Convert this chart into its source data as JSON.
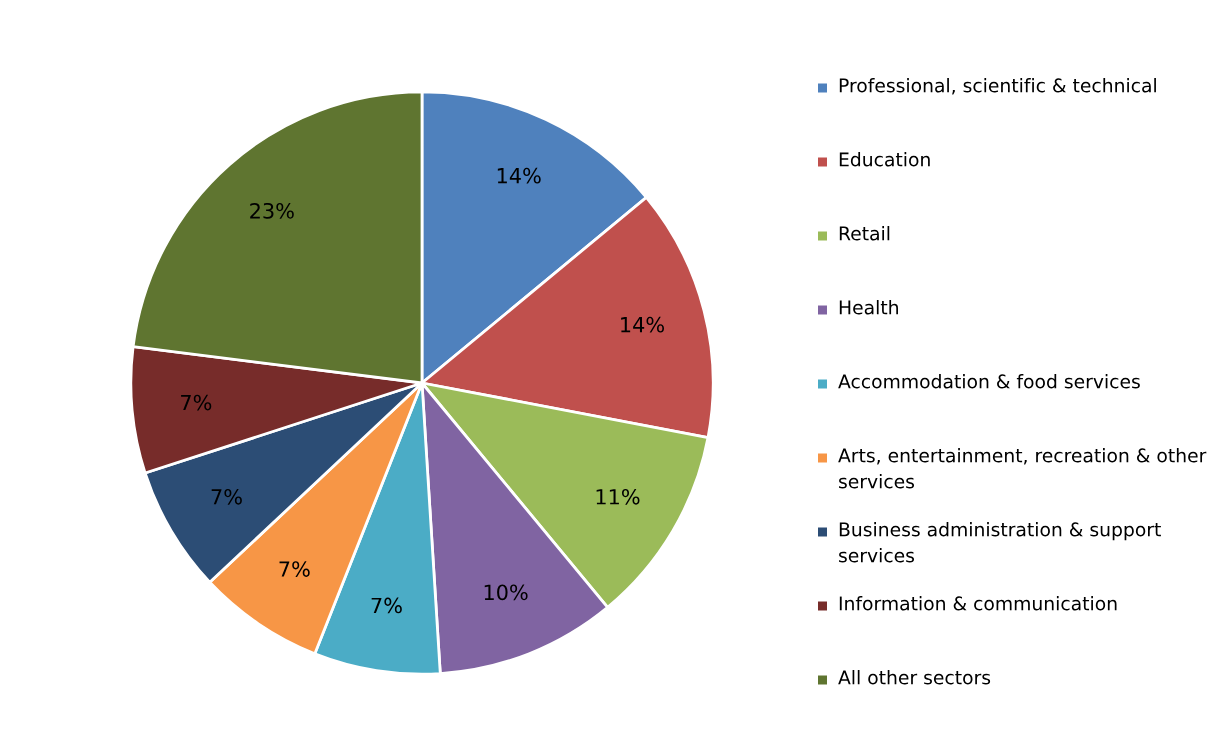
{
  "chart_data": {
    "type": "pie",
    "categories": [
      "Professional, scientific & technical",
      "Education",
      "Retail",
      "Health",
      "Accommodation & food services",
      "Arts, entertainment, recreation & other services",
      "Business administration & support services",
      "Information & communication",
      "All other sectors"
    ],
    "values": [
      14,
      14,
      11,
      10,
      7,
      7,
      7,
      7,
      23
    ],
    "colors": [
      "#4f81bd",
      "#c0504d",
      "#9bbb59",
      "#8064a2",
      "#4bacc6",
      "#f79646",
      "#2c4d75",
      "#772c2a",
      "#5f7530"
    ],
    "value_labels": [
      "14%",
      "14%",
      "11%",
      "10%",
      "7%",
      "7%",
      "7%",
      "7%",
      "23%"
    ],
    "legend": "right"
  }
}
